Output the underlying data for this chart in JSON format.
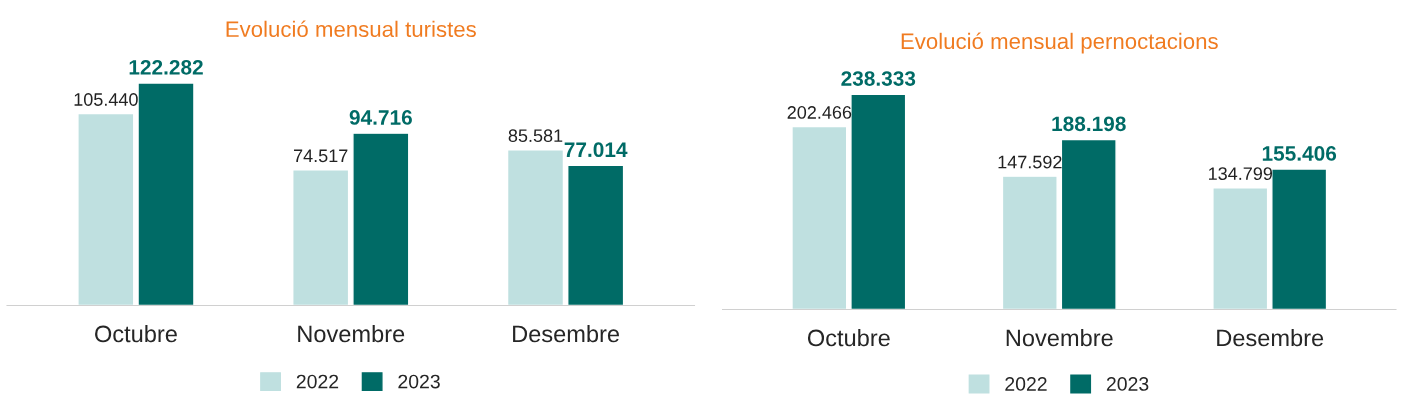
{
  "chart_data": [
    {
      "type": "bar",
      "title": "Evolució mensual turistes",
      "categories": [
        "Octubre",
        "Novembre",
        "Desembre"
      ],
      "legend": "bottom",
      "grid": false,
      "series": [
        {
          "name": "2022",
          "color": "#bfe0e0",
          "values": [
            105440,
            74517,
            85581
          ],
          "value_labels": [
            "105.440",
            "74.517",
            "85.581"
          ]
        },
        {
          "name": "2023",
          "color": "#006b66",
          "values": [
            122282,
            94716,
            77014
          ],
          "value_labels": [
            "122.282",
            "94.716",
            "77.014"
          ]
        }
      ]
    },
    {
      "type": "bar",
      "title": "Evolució mensual pernoctacions",
      "categories": [
        "Octubre",
        "Novembre",
        "Desembre"
      ],
      "legend": "bottom",
      "grid": false,
      "series": [
        {
          "name": "2022",
          "color": "#bfe0e0",
          "values": [
            202466,
            147592,
            134799
          ],
          "value_labels": [
            "202.466",
            "147.592",
            "134.799"
          ]
        },
        {
          "name": "2023",
          "color": "#006b66",
          "values": [
            238333,
            188198,
            155406
          ],
          "value_labels": [
            "238.333",
            "188.198",
            "155.406"
          ]
        }
      ]
    }
  ]
}
